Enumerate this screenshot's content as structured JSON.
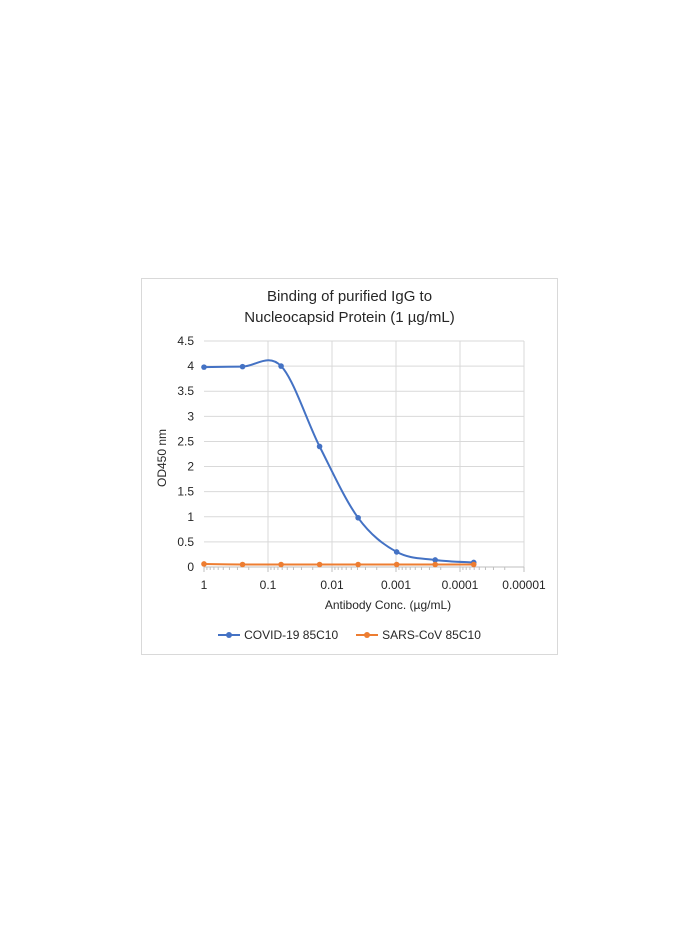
{
  "chart_data": {
    "type": "line",
    "title": [
      "Binding of purified IgG to",
      "Nucleocapsid Protein (1 µg/mL)"
    ],
    "xlabel": "Antibody Conc. (µg/mL)",
    "ylabel": "OD450 nm",
    "x_scale": "log",
    "x_reversed": true,
    "xlim": [
      1,
      1e-05
    ],
    "ylim": [
      0,
      4.5
    ],
    "x_ticks": [
      1,
      0.1,
      0.01,
      0.001,
      0.0001,
      1e-05
    ],
    "x_tick_labels": [
      "1",
      "0.1",
      "0.01",
      "0.001",
      "0.0001",
      "0.00001"
    ],
    "y_ticks": [
      0,
      0.5,
      1,
      1.5,
      2,
      2.5,
      3,
      3.5,
      4,
      4.5
    ],
    "y_tick_labels": [
      "0",
      "0.5",
      "1",
      "1.5",
      "2",
      "2.5",
      "3",
      "3.5",
      "4",
      "4.5"
    ],
    "grid": true,
    "legend_position": "bottom",
    "series": [
      {
        "name": "COVID-19 85C10",
        "color": "#4472c4",
        "smooth": true,
        "x": [
          1,
          0.25,
          0.0625,
          0.015625,
          0.00390625,
          0.0009765625,
          0.000244140625,
          6.103515625e-05
        ],
        "y": [
          3.98,
          3.99,
          4.0,
          2.4,
          0.98,
          0.3,
          0.14,
          0.09
        ]
      },
      {
        "name": "SARS-CoV 85C10",
        "color": "#ed7d31",
        "smooth": true,
        "x": [
          1,
          0.25,
          0.0625,
          0.015625,
          0.00390625,
          0.0009765625,
          0.000244140625,
          6.103515625e-05
        ],
        "y": [
          0.06,
          0.05,
          0.05,
          0.05,
          0.05,
          0.05,
          0.05,
          0.05
        ]
      }
    ]
  }
}
